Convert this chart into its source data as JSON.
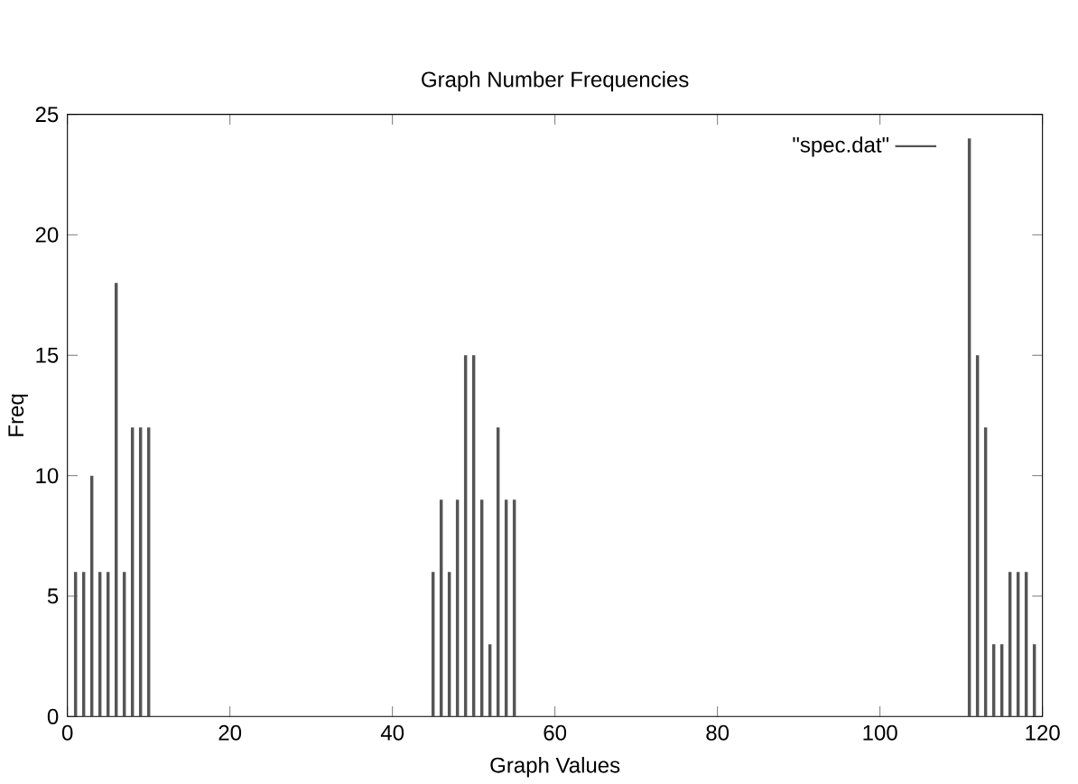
{
  "chart_data": {
    "type": "bar",
    "title": "Graph Number Frequencies",
    "xlabel": "Graph Values",
    "ylabel": "Freq",
    "x": [
      1,
      2,
      3,
      4,
      5,
      6,
      7,
      8,
      9,
      10,
      45,
      46,
      47,
      48,
      49,
      50,
      51,
      52,
      53,
      54,
      55,
      111,
      112,
      113,
      114,
      115,
      116,
      117,
      118,
      119
    ],
    "series": [
      {
        "name": "\"spec.dat\"",
        "color": "#555555",
        "values": [
          6,
          6,
          10,
          6,
          6,
          18,
          6,
          12,
          12,
          12,
          6,
          9,
          6,
          9,
          15,
          15,
          9,
          3,
          12,
          9,
          9,
          24,
          15,
          12,
          3,
          3,
          6,
          6,
          6,
          3
        ]
      }
    ],
    "xlim": [
      0,
      120
    ],
    "ylim": [
      0,
      25
    ],
    "xticks": [
      0,
      20,
      40,
      60,
      80,
      100,
      120
    ],
    "yticks": [
      0,
      5,
      10,
      15,
      20,
      25
    ],
    "legend": "top right"
  }
}
